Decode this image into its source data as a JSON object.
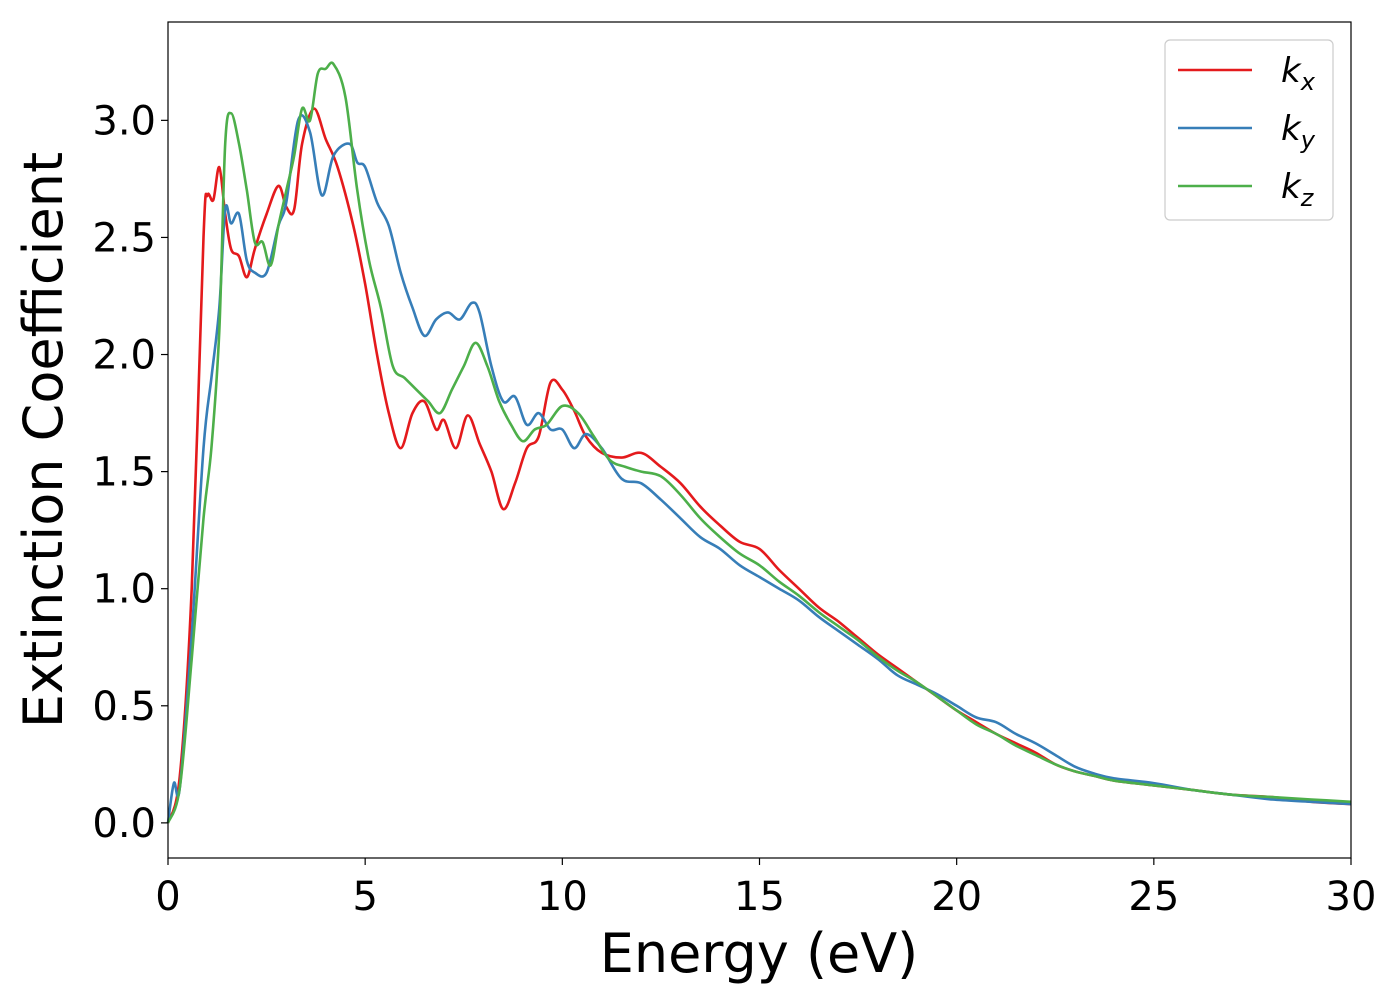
{
  "chart_data": {
    "type": "line",
    "title": "",
    "xlabel": "Energy (eV)",
    "ylabel": "Extinction Coefficient",
    "xlim": [
      0,
      30
    ],
    "ylim": [
      -0.15,
      3.42
    ],
    "xticks": [
      0,
      5,
      10,
      15,
      20,
      25,
      30
    ],
    "xtick_labels": [
      "0",
      "5",
      "10",
      "15",
      "20",
      "25",
      "30"
    ],
    "yticks": [
      0.0,
      0.5,
      1.0,
      1.5,
      2.0,
      2.5,
      3.0
    ],
    "ytick_labels": [
      "0.0",
      "0.5",
      "1.0",
      "1.5",
      "2.0",
      "2.5",
      "3.0"
    ],
    "grid": false,
    "legend_position": "top-right",
    "series": [
      {
        "name": "k_x",
        "label_base": "k",
        "label_sub": "x",
        "color": "#e41a1c",
        "x": [
          0,
          0.3,
          0.6,
          0.9,
          1.0,
          1.15,
          1.3,
          1.45,
          1.6,
          1.8,
          2.0,
          2.2,
          2.5,
          2.8,
          3.0,
          3.2,
          3.4,
          3.7,
          4.0,
          4.3,
          4.7,
          5.0,
          5.3,
          5.6,
          5.9,
          6.2,
          6.5,
          6.8,
          7.0,
          7.3,
          7.6,
          7.9,
          8.2,
          8.5,
          8.8,
          9.1,
          9.4,
          9.7,
          10.0,
          10.3,
          10.6,
          11.0,
          11.5,
          12.0,
          12.5,
          13.0,
          13.5,
          14.0,
          14.5,
          15.0,
          15.5,
          16.0,
          16.5,
          17.0,
          17.5,
          18.0,
          18.5,
          19.0,
          19.5,
          20.0,
          20.5,
          21.0,
          21.5,
          22.0,
          22.5,
          23.0,
          23.5,
          24.0,
          25.0,
          26.0,
          27.0,
          28.0,
          29.0,
          30.0
        ],
        "values": [
          0.0,
          0.2,
          1.0,
          2.5,
          2.68,
          2.66,
          2.8,
          2.6,
          2.45,
          2.42,
          2.33,
          2.45,
          2.6,
          2.72,
          2.63,
          2.62,
          2.9,
          3.05,
          2.92,
          2.8,
          2.55,
          2.3,
          2.0,
          1.75,
          1.6,
          1.75,
          1.8,
          1.68,
          1.72,
          1.6,
          1.74,
          1.62,
          1.5,
          1.34,
          1.45,
          1.6,
          1.65,
          1.88,
          1.85,
          1.76,
          1.65,
          1.58,
          1.56,
          1.58,
          1.52,
          1.45,
          1.35,
          1.27,
          1.2,
          1.17,
          1.08,
          1.0,
          0.92,
          0.86,
          0.79,
          0.72,
          0.66,
          0.6,
          0.54,
          0.48,
          0.43,
          0.38,
          0.34,
          0.3,
          0.25,
          0.22,
          0.2,
          0.18,
          0.16,
          0.14,
          0.12,
          0.11,
          0.09,
          0.08
        ]
      },
      {
        "name": "k_y",
        "label_base": "k",
        "label_sub": "y",
        "color": "#377eb8",
        "x": [
          0,
          0.15,
          0.3,
          0.6,
          0.9,
          1.1,
          1.3,
          1.45,
          1.6,
          1.8,
          2.0,
          2.2,
          2.5,
          2.8,
          3.0,
          3.3,
          3.6,
          3.9,
          4.2,
          4.6,
          4.8,
          5.0,
          5.3,
          5.6,
          5.9,
          6.2,
          6.5,
          6.8,
          7.1,
          7.4,
          7.7,
          7.9,
          8.2,
          8.5,
          8.8,
          9.1,
          9.4,
          9.7,
          10.0,
          10.3,
          10.6,
          11.0,
          11.5,
          12.0,
          12.5,
          13.0,
          13.5,
          14.0,
          14.5,
          15.0,
          15.5,
          16.0,
          16.5,
          17.0,
          17.5,
          18.0,
          18.5,
          19.0,
          19.5,
          20.0,
          20.5,
          21.0,
          21.5,
          22.0,
          22.5,
          23.0,
          23.5,
          24.0,
          25.0,
          26.0,
          27.0,
          28.0,
          29.0,
          30.0
        ],
        "values": [
          0.0,
          0.17,
          0.15,
          0.8,
          1.6,
          1.9,
          2.2,
          2.62,
          2.56,
          2.6,
          2.4,
          2.35,
          2.35,
          2.55,
          2.65,
          3.0,
          2.95,
          2.68,
          2.85,
          2.9,
          2.82,
          2.8,
          2.65,
          2.55,
          2.35,
          2.2,
          2.08,
          2.15,
          2.18,
          2.15,
          2.22,
          2.18,
          1.95,
          1.8,
          1.82,
          1.7,
          1.75,
          1.68,
          1.68,
          1.6,
          1.66,
          1.6,
          1.47,
          1.45,
          1.38,
          1.3,
          1.22,
          1.17,
          1.1,
          1.05,
          1.0,
          0.95,
          0.88,
          0.82,
          0.76,
          0.7,
          0.63,
          0.59,
          0.55,
          0.5,
          0.45,
          0.43,
          0.38,
          0.34,
          0.29,
          0.24,
          0.21,
          0.19,
          0.17,
          0.14,
          0.12,
          0.1,
          0.09,
          0.08
        ]
      },
      {
        "name": "k_z",
        "label_base": "k",
        "label_sub": "z",
        "color": "#4daf4a",
        "x": [
          0,
          0.3,
          0.6,
          0.9,
          1.1,
          1.3,
          1.45,
          1.6,
          1.8,
          2.0,
          2.2,
          2.4,
          2.6,
          2.8,
          3.0,
          3.2,
          3.4,
          3.6,
          3.8,
          4.0,
          4.2,
          4.5,
          4.8,
          5.1,
          5.4,
          5.7,
          6.0,
          6.3,
          6.6,
          6.9,
          7.2,
          7.5,
          7.8,
          8.1,
          8.4,
          8.7,
          9.0,
          9.3,
          9.6,
          10.0,
          10.4,
          10.8,
          11.2,
          11.6,
          12.0,
          12.5,
          13.0,
          13.5,
          14.0,
          14.5,
          15.0,
          15.5,
          16.0,
          16.5,
          17.0,
          17.5,
          18.0,
          18.5,
          19.0,
          19.5,
          20.0,
          20.5,
          21.0,
          21.5,
          22.0,
          22.5,
          23.0,
          23.5,
          24.0,
          25.0,
          26.0,
          27.0,
          28.0,
          29.0,
          30.0
        ],
        "values": [
          0.0,
          0.15,
          0.7,
          1.3,
          1.6,
          2.1,
          2.9,
          3.03,
          2.9,
          2.7,
          2.48,
          2.48,
          2.38,
          2.55,
          2.7,
          2.85,
          3.05,
          3.0,
          3.2,
          3.22,
          3.24,
          3.1,
          2.7,
          2.4,
          2.2,
          1.95,
          1.9,
          1.85,
          1.8,
          1.75,
          1.85,
          1.95,
          2.05,
          1.95,
          1.8,
          1.7,
          1.63,
          1.68,
          1.7,
          1.78,
          1.75,
          1.65,
          1.55,
          1.52,
          1.5,
          1.48,
          1.4,
          1.3,
          1.22,
          1.15,
          1.1,
          1.03,
          0.97,
          0.9,
          0.84,
          0.78,
          0.71,
          0.65,
          0.6,
          0.54,
          0.48,
          0.42,
          0.38,
          0.33,
          0.29,
          0.25,
          0.22,
          0.2,
          0.18,
          0.16,
          0.14,
          0.12,
          0.11,
          0.1,
          0.09
        ]
      }
    ]
  }
}
